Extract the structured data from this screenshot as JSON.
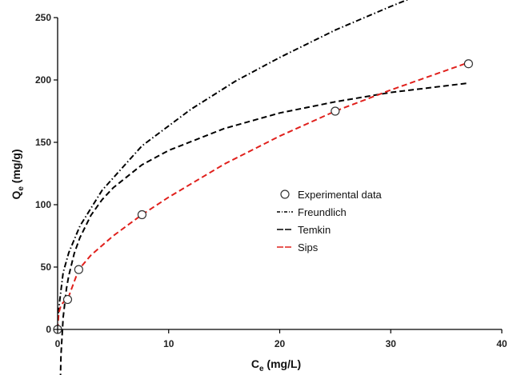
{
  "chart_data": {
    "type": "scatter",
    "title": "",
    "xlabel": {
      "main": "C",
      "sub": "e",
      "unit": " (mg/L)"
    },
    "ylabel": {
      "main": "Q",
      "sub": "e",
      "unit": " (mg/g)"
    },
    "xlim": [
      0,
      40
    ],
    "ylim": [
      0,
      250
    ],
    "xticks": [
      0,
      10,
      20,
      30,
      40
    ],
    "yticks": [
      0,
      50,
      100,
      150,
      200,
      250
    ],
    "grid": false,
    "legend_position": "center-right",
    "series": [
      {
        "name": "Experimental data",
        "kind": "markers",
        "color": "#000000",
        "x": [
          0,
          0.9,
          1.9,
          7.6,
          25,
          37
        ],
        "y": [
          0,
          24,
          48,
          92,
          175,
          213
        ]
      },
      {
        "name": "Freundlich",
        "kind": "line",
        "style": "dash-dot",
        "color": "#000000",
        "x": [
          0.05,
          0.5,
          1,
          2,
          4,
          7.6,
          12,
          16,
          20,
          25,
          30,
          37
        ],
        "y": [
          13,
          45.6,
          61.5,
          82.8,
          111.5,
          147.2,
          176.5,
          199,
          218,
          240,
          259,
          284
        ]
      },
      {
        "name": "Temkin",
        "kind": "line",
        "style": "dash",
        "color": "#000000",
        "x": [
          0.25,
          0.3,
          0.5,
          0.8,
          1,
          1.5,
          2,
          3,
          4,
          5,
          7.6,
          10,
          15,
          20,
          25,
          30,
          37
        ],
        "y": [
          -40,
          -20.5,
          9.5,
          33,
          43,
          61,
          73.5,
          91.5,
          104,
          113.5,
          132,
          143.5,
          161,
          173.5,
          182.5,
          190,
          197.5
        ]
      },
      {
        "name": "Sips",
        "kind": "line",
        "style": "dash",
        "color": "#e0201c",
        "x": [
          0,
          0.1,
          0.3,
          0.6,
          0.9,
          1.4,
          1.9,
          3,
          5,
          7.6,
          10,
          15,
          20,
          25,
          30,
          37
        ],
        "y": [
          0,
          13,
          19.5,
          22.5,
          24,
          36,
          48,
          59.5,
          75,
          92,
          106,
          132.5,
          155,
          175,
          192,
          214
        ]
      }
    ]
  }
}
